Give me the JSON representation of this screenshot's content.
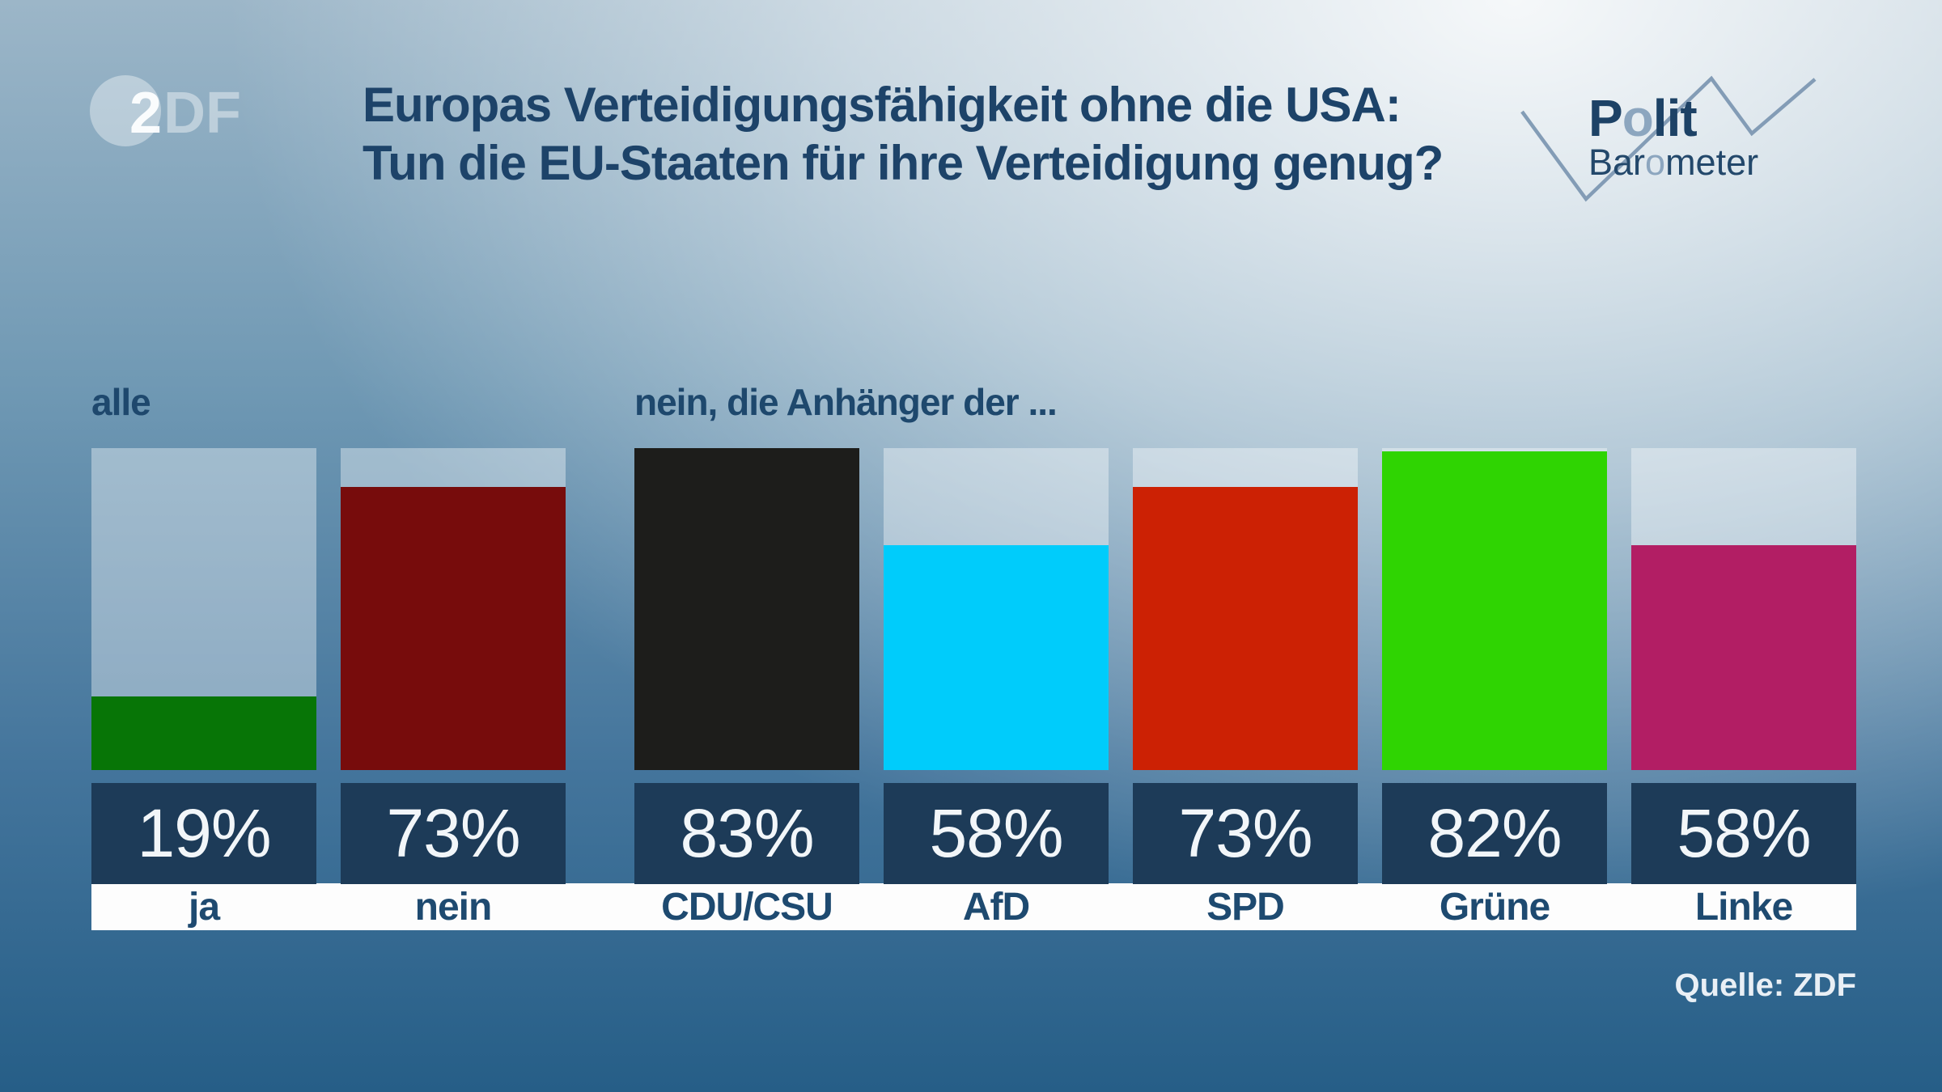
{
  "brand": {
    "zdf_2": "2",
    "zdf_df": "DF"
  },
  "title": {
    "line1": "Europas Verteidigungsfähigkeit ohne die USA:",
    "line2": "Tun die EU-Staaten für ihre Verteidigung genug?"
  },
  "politbarometer": {
    "polit_p": "P",
    "polit_o": "o",
    "polit_rest": "lit",
    "baro_pre": "Bar",
    "baro_o": "o",
    "baro_rest": "meter"
  },
  "source": "Quelle: ZDF",
  "colors": {
    "title_text": "#1d4369",
    "label_text": "#1e4a70",
    "percent_box": "#1d3b58",
    "percent_text": "#f2f6f9",
    "label_strip": "#fdfdfd",
    "bar_remainder": "rgba(255,255,255,0.38)",
    "zigzag": "#7d98b2"
  },
  "chart_data": {
    "type": "bar",
    "title": "Europas Verteidigungsfähigkeit ohne die USA: Tun die EU-Staaten für ihre Verteidigung genug?",
    "unit": "%",
    "ylim": [
      0,
      100
    ],
    "legend_position": "none",
    "grid": false,
    "groups": [
      {
        "label": "alle",
        "bars": [
          {
            "category": "ja",
            "value": 19,
            "color": "#077506"
          },
          {
            "category": "nein",
            "value": 73,
            "color": "#770c0c"
          }
        ]
      },
      {
        "label": "nein, die Anhänger der ...",
        "bars": [
          {
            "category": "CDU/CSU",
            "value": 83,
            "color": "#1d1d1b"
          },
          {
            "category": "AfD",
            "value": 58,
            "color": "#00ccfb"
          },
          {
            "category": "SPD",
            "value": 73,
            "color": "#cc2104"
          },
          {
            "category": "Grüne",
            "value": 82,
            "color": "#2fd402"
          },
          {
            "category": "Linke",
            "value": 58,
            "color": "#b21e64"
          }
        ]
      }
    ],
    "source": "Quelle: ZDF"
  }
}
